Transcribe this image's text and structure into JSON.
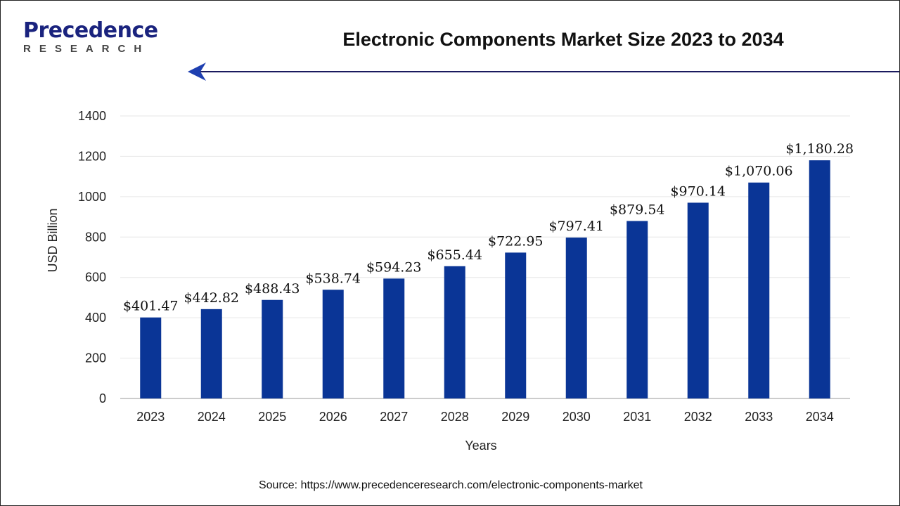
{
  "header": {
    "title": "Electronic Components Market Size 2023 to 2034",
    "logo_text": "Precedence",
    "logo_sub": "RESEARCH"
  },
  "source": "Source: https://www.precedenceresearch.com/electronic-components-market",
  "chart_data": {
    "type": "bar",
    "title": "Electronic Components Market Size 2023 to 2034",
    "xlabel": "Years",
    "ylabel": "USD Billion",
    "ylim": [
      0,
      1400
    ],
    "yticks": [
      0,
      200,
      400,
      600,
      800,
      1000,
      1200,
      1400
    ],
    "grid": true,
    "bar_color": "#0a3596",
    "categories": [
      "2023",
      "2024",
      "2025",
      "2026",
      "2027",
      "2028",
      "2029",
      "2030",
      "2031",
      "2032",
      "2033",
      "2034"
    ],
    "values": [
      401.47,
      442.82,
      488.43,
      538.74,
      594.23,
      655.44,
      722.95,
      797.41,
      879.54,
      970.14,
      1070.06,
      1180.28
    ],
    "labels": [
      "$401.47",
      "$442.82",
      "$488.43",
      "$538.74",
      "$594.23",
      "$655.44",
      "$722.95",
      "$797.41",
      "$879.54",
      "$970.14",
      "$1,070.06",
      "$1,180.28"
    ]
  }
}
